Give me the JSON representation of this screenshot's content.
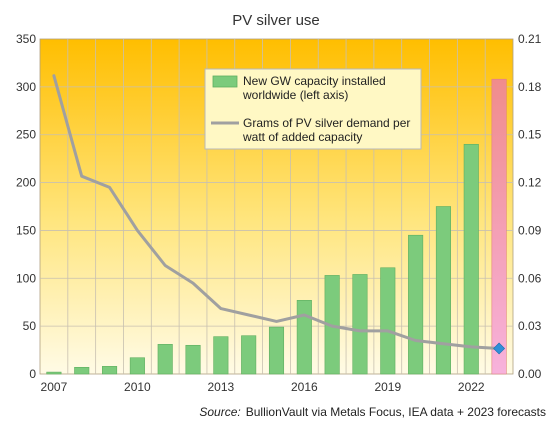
{
  "chart_data": {
    "type": "bar",
    "title": "PV silver use",
    "categories": [
      "2007",
      "2008",
      "2009",
      "2010",
      "2011",
      "2012",
      "2013",
      "2014",
      "2015",
      "2016",
      "2017",
      "2018",
      "2019",
      "2020",
      "2021",
      "2022",
      "2023"
    ],
    "x_tick_labels": [
      "2007",
      "2010",
      "2013",
      "2016",
      "2019",
      "2022"
    ],
    "left_axis": {
      "ylim": [
        0,
        350
      ],
      "ticks": [
        "0",
        "50",
        "100",
        "150",
        "200",
        "250",
        "300",
        "350"
      ]
    },
    "right_axis": {
      "ylim": [
        0,
        0.21
      ],
      "ticks": [
        "0.00",
        "0.03",
        "0.06",
        "0.09",
        "0.12",
        "0.15",
        "0.18",
        "0.21"
      ]
    },
    "grid": true,
    "legend_position": "top-center",
    "series": [
      {
        "name": "New GW capacity installed worldwide (left axis)",
        "kind": "bar",
        "axis": "left",
        "values": [
          2,
          7,
          8,
          17,
          31,
          30,
          39,
          40,
          49,
          77,
          103,
          104,
          111,
          145,
          175,
          240,
          308
        ],
        "forecast_last": true
      },
      {
        "name": "Grams of PV silver demand per watt of added capacity",
        "kind": "line",
        "axis": "right",
        "values": [
          0.187,
          0.124,
          0.117,
          0.09,
          0.068,
          0.057,
          0.041,
          0.037,
          0.033,
          0.037,
          0.03,
          0.027,
          0.027,
          0.021,
          0.019,
          0.017,
          0.016
        ],
        "forecast_last": true
      }
    ],
    "legend": {
      "bar_label_lines": [
        "New GW capacity installed",
        "worldwide (left axis)"
      ],
      "line_label_lines": [
        "Grams of PV silver demand per",
        "watt of added capacity"
      ]
    },
    "source_prefix": "Source:",
    "source_text": "BullionVault via Metals Focus, IEA data + 2023 forecasts",
    "colors": {
      "bar": "#7ccb7c",
      "bar_stroke": "#5fae5f",
      "forecast_bar_top": "#f08c8c",
      "forecast_bar_bottom": "#f7b2dc",
      "line": "#a0a0a0",
      "forecast_marker": "#2f8fd8",
      "bg_top": "#ffbe00",
      "bg_bottom": "#fffbe6",
      "legend_bg": "#fff8c4"
    }
  }
}
